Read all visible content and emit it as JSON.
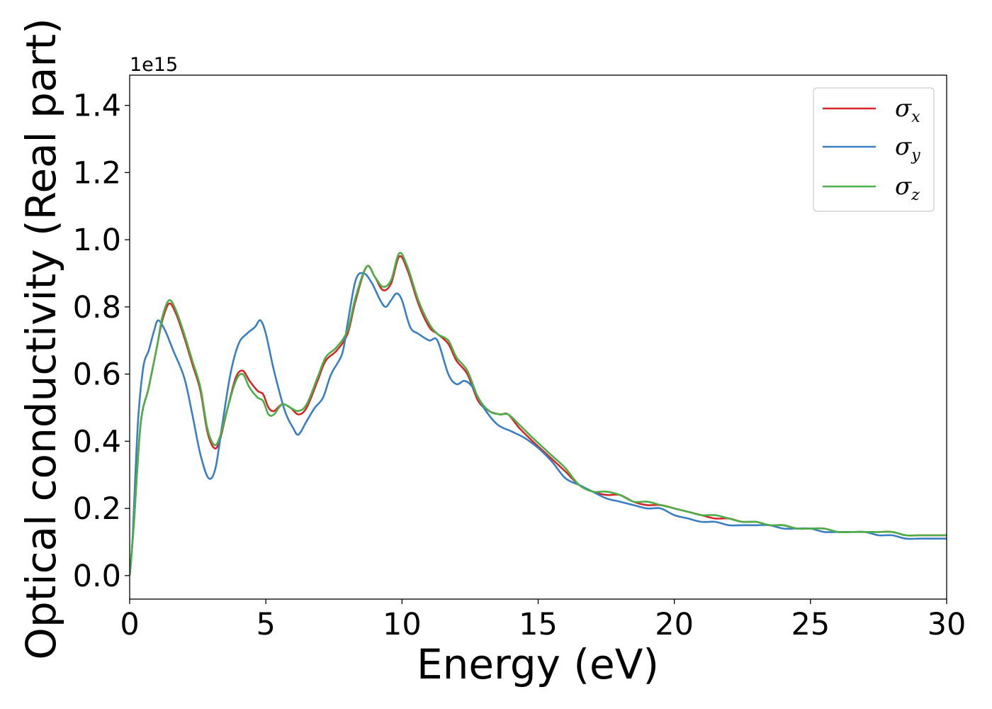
{
  "chart_data": {
    "type": "line",
    "title": "",
    "xlabel": "Energy (eV)",
    "ylabel": "Optical conductivity (Real part)",
    "y_offset_label": "1e15",
    "xlim": [
      0,
      30
    ],
    "ylim": [
      -0.07,
      1.49
    ],
    "x_ticks": [
      0,
      5,
      10,
      15,
      20,
      25,
      30
    ],
    "x_tick_labels": [
      "0",
      "5",
      "10",
      "15",
      "20",
      "25",
      "30"
    ],
    "y_ticks": [
      0.0,
      0.2,
      0.4,
      0.6,
      0.8,
      1.0,
      1.2,
      1.4
    ],
    "y_tick_labels": [
      "0.0",
      "0.2",
      "0.4",
      "0.6",
      "0.8",
      "1.0",
      "1.2",
      "1.4"
    ],
    "grid": false,
    "legend_position": "top-right",
    "series": [
      {
        "name": "σx",
        "symbol": "σ",
        "subscript": "x",
        "color": "#d62728",
        "points": [
          [
            0,
            0.0
          ],
          [
            0.15,
            0.15
          ],
          [
            0.4,
            0.45
          ],
          [
            0.7,
            0.56
          ],
          [
            1.0,
            0.68
          ],
          [
            1.2,
            0.76
          ],
          [
            1.45,
            0.81
          ],
          [
            1.7,
            0.78
          ],
          [
            2.0,
            0.71
          ],
          [
            2.3,
            0.63
          ],
          [
            2.6,
            0.55
          ],
          [
            2.85,
            0.43
          ],
          [
            3.1,
            0.38
          ],
          [
            3.3,
            0.4
          ],
          [
            3.6,
            0.5
          ],
          [
            3.9,
            0.59
          ],
          [
            4.15,
            0.61
          ],
          [
            4.4,
            0.58
          ],
          [
            4.7,
            0.55
          ],
          [
            4.9,
            0.54
          ],
          [
            5.1,
            0.5
          ],
          [
            5.3,
            0.49
          ],
          [
            5.6,
            0.51
          ],
          [
            5.9,
            0.5
          ],
          [
            6.2,
            0.48
          ],
          [
            6.5,
            0.5
          ],
          [
            6.9,
            0.58
          ],
          [
            7.2,
            0.64
          ],
          [
            7.6,
            0.67
          ],
          [
            8.0,
            0.72
          ],
          [
            8.3,
            0.82
          ],
          [
            8.7,
            0.92
          ],
          [
            9.0,
            0.89
          ],
          [
            9.3,
            0.85
          ],
          [
            9.6,
            0.87
          ],
          [
            9.9,
            0.95
          ],
          [
            10.2,
            0.91
          ],
          [
            10.6,
            0.81
          ],
          [
            11.0,
            0.74
          ],
          [
            11.3,
            0.72
          ],
          [
            11.7,
            0.69
          ],
          [
            12.0,
            0.64
          ],
          [
            12.4,
            0.6
          ],
          [
            12.8,
            0.52
          ],
          [
            13.2,
            0.49
          ],
          [
            13.6,
            0.48
          ],
          [
            13.9,
            0.48
          ],
          [
            14.3,
            0.44
          ],
          [
            14.8,
            0.4
          ],
          [
            15.2,
            0.37
          ],
          [
            15.6,
            0.34
          ],
          [
            16.0,
            0.31
          ],
          [
            16.5,
            0.27
          ],
          [
            17.0,
            0.25
          ],
          [
            17.5,
            0.24
          ],
          [
            18.0,
            0.24
          ],
          [
            18.5,
            0.22
          ],
          [
            19.0,
            0.21
          ],
          [
            19.5,
            0.21
          ],
          [
            20.0,
            0.2
          ],
          [
            20.5,
            0.19
          ],
          [
            21.0,
            0.18
          ],
          [
            21.5,
            0.17
          ],
          [
            22.0,
            0.17
          ],
          [
            22.5,
            0.16
          ],
          [
            23.0,
            0.16
          ],
          [
            23.5,
            0.15
          ],
          [
            24.0,
            0.15
          ],
          [
            24.5,
            0.14
          ],
          [
            25.0,
            0.14
          ],
          [
            25.5,
            0.14
          ],
          [
            26.0,
            0.13
          ],
          [
            26.5,
            0.13
          ],
          [
            27.0,
            0.13
          ],
          [
            27.5,
            0.13
          ],
          [
            28.0,
            0.13
          ],
          [
            28.5,
            0.12
          ],
          [
            29.0,
            0.12
          ],
          [
            29.5,
            0.12
          ],
          [
            30.0,
            0.12
          ]
        ]
      },
      {
        "name": "σy",
        "symbol": "σ",
        "subscript": "y",
        "color": "#3a7fc1",
        "points": [
          [
            0,
            0.0
          ],
          [
            0.1,
            0.1
          ],
          [
            0.3,
            0.45
          ],
          [
            0.5,
            0.62
          ],
          [
            0.7,
            0.67
          ],
          [
            0.9,
            0.73
          ],
          [
            1.05,
            0.76
          ],
          [
            1.3,
            0.73
          ],
          [
            1.6,
            0.67
          ],
          [
            2.0,
            0.59
          ],
          [
            2.3,
            0.48
          ],
          [
            2.6,
            0.36
          ],
          [
            2.9,
            0.29
          ],
          [
            3.15,
            0.32
          ],
          [
            3.4,
            0.45
          ],
          [
            3.7,
            0.6
          ],
          [
            4.0,
            0.69
          ],
          [
            4.3,
            0.72
          ],
          [
            4.6,
            0.74
          ],
          [
            4.8,
            0.76
          ],
          [
            5.0,
            0.72
          ],
          [
            5.3,
            0.61
          ],
          [
            5.7,
            0.49
          ],
          [
            6.0,
            0.44
          ],
          [
            6.2,
            0.42
          ],
          [
            6.5,
            0.46
          ],
          [
            6.8,
            0.5
          ],
          [
            7.1,
            0.53
          ],
          [
            7.4,
            0.6
          ],
          [
            7.8,
            0.66
          ],
          [
            8.0,
            0.75
          ],
          [
            8.3,
            0.88
          ],
          [
            8.6,
            0.9
          ],
          [
            8.9,
            0.87
          ],
          [
            9.2,
            0.82
          ],
          [
            9.4,
            0.8
          ],
          [
            9.6,
            0.82
          ],
          [
            9.8,
            0.84
          ],
          [
            10.0,
            0.82
          ],
          [
            10.3,
            0.74
          ],
          [
            10.6,
            0.72
          ],
          [
            11.0,
            0.7
          ],
          [
            11.3,
            0.7
          ],
          [
            11.7,
            0.6
          ],
          [
            12.0,
            0.57
          ],
          [
            12.3,
            0.58
          ],
          [
            12.6,
            0.56
          ],
          [
            13.0,
            0.5
          ],
          [
            13.5,
            0.45
          ],
          [
            14.0,
            0.43
          ],
          [
            14.5,
            0.41
          ],
          [
            15.0,
            0.38
          ],
          [
            15.5,
            0.34
          ],
          [
            16.0,
            0.29
          ],
          [
            16.5,
            0.27
          ],
          [
            17.0,
            0.25
          ],
          [
            17.5,
            0.23
          ],
          [
            18.0,
            0.22
          ],
          [
            18.5,
            0.21
          ],
          [
            19.0,
            0.2
          ],
          [
            19.5,
            0.2
          ],
          [
            20.0,
            0.18
          ],
          [
            20.5,
            0.17
          ],
          [
            21.0,
            0.16
          ],
          [
            21.5,
            0.16
          ],
          [
            22.0,
            0.15
          ],
          [
            22.5,
            0.15
          ],
          [
            23.0,
            0.15
          ],
          [
            23.5,
            0.15
          ],
          [
            24.0,
            0.14
          ],
          [
            24.5,
            0.14
          ],
          [
            25.0,
            0.14
          ],
          [
            25.5,
            0.13
          ],
          [
            26.0,
            0.13
          ],
          [
            26.5,
            0.13
          ],
          [
            27.0,
            0.13
          ],
          [
            27.5,
            0.12
          ],
          [
            28.0,
            0.12
          ],
          [
            28.5,
            0.11
          ],
          [
            29.0,
            0.11
          ],
          [
            29.5,
            0.11
          ],
          [
            30.0,
            0.11
          ]
        ]
      },
      {
        "name": "σz",
        "symbol": "σ",
        "subscript": "z",
        "color": "#4daf4a",
        "points": [
          [
            0,
            0.0
          ],
          [
            0.15,
            0.15
          ],
          [
            0.4,
            0.45
          ],
          [
            0.7,
            0.56
          ],
          [
            1.0,
            0.68
          ],
          [
            1.2,
            0.77
          ],
          [
            1.45,
            0.82
          ],
          [
            1.7,
            0.79
          ],
          [
            2.0,
            0.72
          ],
          [
            2.3,
            0.64
          ],
          [
            2.6,
            0.56
          ],
          [
            2.85,
            0.44
          ],
          [
            3.1,
            0.39
          ],
          [
            3.3,
            0.41
          ],
          [
            3.6,
            0.5
          ],
          [
            3.9,
            0.58
          ],
          [
            4.15,
            0.6
          ],
          [
            4.4,
            0.56
          ],
          [
            4.7,
            0.53
          ],
          [
            4.9,
            0.52
          ],
          [
            5.1,
            0.48
          ],
          [
            5.3,
            0.48
          ],
          [
            5.6,
            0.51
          ],
          [
            5.9,
            0.5
          ],
          [
            6.2,
            0.49
          ],
          [
            6.5,
            0.51
          ],
          [
            6.9,
            0.59
          ],
          [
            7.2,
            0.65
          ],
          [
            7.6,
            0.68
          ],
          [
            8.0,
            0.73
          ],
          [
            8.3,
            0.83
          ],
          [
            8.7,
            0.92
          ],
          [
            9.0,
            0.89
          ],
          [
            9.3,
            0.86
          ],
          [
            9.6,
            0.88
          ],
          [
            9.9,
            0.96
          ],
          [
            10.2,
            0.92
          ],
          [
            10.6,
            0.82
          ],
          [
            11.0,
            0.75
          ],
          [
            11.3,
            0.72
          ],
          [
            11.7,
            0.7
          ],
          [
            12.0,
            0.65
          ],
          [
            12.4,
            0.61
          ],
          [
            12.8,
            0.53
          ],
          [
            13.2,
            0.49
          ],
          [
            13.6,
            0.48
          ],
          [
            13.9,
            0.48
          ],
          [
            14.3,
            0.45
          ],
          [
            14.8,
            0.41
          ],
          [
            15.2,
            0.38
          ],
          [
            15.6,
            0.35
          ],
          [
            16.0,
            0.32
          ],
          [
            16.5,
            0.27
          ],
          [
            17.0,
            0.25
          ],
          [
            17.5,
            0.25
          ],
          [
            18.0,
            0.24
          ],
          [
            18.5,
            0.22
          ],
          [
            19.0,
            0.22
          ],
          [
            19.5,
            0.21
          ],
          [
            20.0,
            0.2
          ],
          [
            20.5,
            0.19
          ],
          [
            21.0,
            0.18
          ],
          [
            21.5,
            0.18
          ],
          [
            22.0,
            0.17
          ],
          [
            22.5,
            0.16
          ],
          [
            23.0,
            0.16
          ],
          [
            23.5,
            0.15
          ],
          [
            24.0,
            0.15
          ],
          [
            24.5,
            0.14
          ],
          [
            25.0,
            0.14
          ],
          [
            25.5,
            0.14
          ],
          [
            26.0,
            0.13
          ],
          [
            26.5,
            0.13
          ],
          [
            27.0,
            0.13
          ],
          [
            27.5,
            0.13
          ],
          [
            28.0,
            0.13
          ],
          [
            28.5,
            0.12
          ],
          [
            29.0,
            0.12
          ],
          [
            29.5,
            0.12
          ],
          [
            30.0,
            0.12
          ]
        ]
      }
    ]
  }
}
